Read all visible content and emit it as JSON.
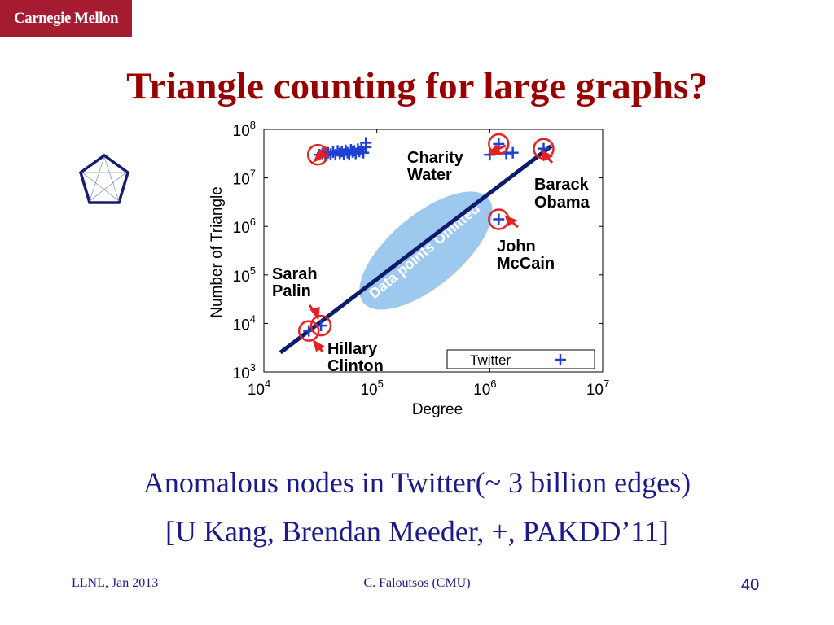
{
  "logo": "Carnegie Mellon",
  "title": "Triangle counting for large graphs?",
  "captions": [
    "Anomalous nodes in Twitter(~ 3 billion edges)",
    "[U Kang, Brendan Meeder, +, PAKDD’11]"
  ],
  "footer": {
    "left": "LLNL, Jan 2013",
    "center": "C. Faloutsos (CMU)",
    "page": "40"
  },
  "chart_data": {
    "type": "scatter",
    "xlabel": "Degree",
    "ylabel": "Number of Triangle",
    "xscale": "log",
    "yscale": "log",
    "xlim": [
      10000,
      10000000
    ],
    "ylim": [
      1000,
      100000000
    ],
    "x_ticks": [
      {
        "base": "10",
        "exp": "4",
        "value": 10000
      },
      {
        "base": "10",
        "exp": "5",
        "value": 100000
      },
      {
        "base": "10",
        "exp": "6",
        "value": 1000000
      },
      {
        "base": "10",
        "exp": "7",
        "value": 10000000
      }
    ],
    "y_ticks": [
      {
        "base": "10",
        "exp": "3",
        "value": 1000
      },
      {
        "base": "10",
        "exp": "4",
        "value": 10000
      },
      {
        "base": "10",
        "exp": "5",
        "value": 100000
      },
      {
        "base": "10",
        "exp": "6",
        "value": 1000000
      },
      {
        "base": "10",
        "exp": "7",
        "value": 10000000
      },
      {
        "base": "10",
        "exp": "8",
        "value": 100000000
      }
    ],
    "legend": {
      "label": "Twitter",
      "position": "bottom-right"
    },
    "series": [
      {
        "name": "Twitter",
        "color": "#1f3fd6",
        "points": [
          [
            31000,
            30000000
          ],
          [
            33000,
            32000000
          ],
          [
            35000,
            29000000
          ],
          [
            37000,
            33000000
          ],
          [
            39000,
            31000000
          ],
          [
            41000,
            34000000
          ],
          [
            43000,
            30000000
          ],
          [
            45000,
            36000000
          ],
          [
            47000,
            32000000
          ],
          [
            49000,
            35000000
          ],
          [
            51000,
            31000000
          ],
          [
            53000,
            37000000
          ],
          [
            55000,
            33000000
          ],
          [
            57000,
            30000000
          ],
          [
            59000,
            38000000
          ],
          [
            61000,
            34000000
          ],
          [
            63000,
            36000000
          ],
          [
            65000,
            32000000
          ],
          [
            68000,
            39000000
          ],
          [
            70000,
            35000000
          ],
          [
            73000,
            40000000
          ],
          [
            76000,
            33000000
          ],
          [
            80000,
            43000000
          ],
          [
            80000,
            53000000
          ],
          [
            1000000,
            30000000
          ],
          [
            1200000,
            50000000
          ],
          [
            1400000,
            32000000
          ],
          [
            1600000,
            33000000
          ],
          [
            3000000,
            40000000
          ],
          [
            1200000,
            1400000
          ],
          [
            32000,
            9000
          ],
          [
            25000,
            7000
          ]
        ]
      }
    ],
    "highlighted": [
      {
        "x": 30000,
        "y": 30000000,
        "label": ""
      },
      {
        "x": 1200000,
        "y": 50000000,
        "label": "Charity Water"
      },
      {
        "x": 3000000,
        "y": 40000000,
        "label": "Barack Obama"
      },
      {
        "x": 1200000,
        "y": 1400000,
        "label": "John McCain"
      },
      {
        "x": 32000,
        "y": 9000,
        "label": "Sarah Palin"
      },
      {
        "x": 25000,
        "y": 7000,
        "label": "Hillary Clinton"
      }
    ],
    "annotations": {
      "omitted": "Data points Omitted",
      "charity": [
        "Charity",
        "Water"
      ],
      "obama": [
        "Barack",
        "Obama"
      ],
      "mccain": [
        "John",
        "McCain"
      ],
      "palin": [
        "Sarah",
        "Palin"
      ],
      "clinton": [
        "Hillary",
        "Clinton"
      ]
    },
    "trend_line": {
      "from": [
        14000,
        2500
      ],
      "to": [
        3500000,
        45000000
      ],
      "color": "#0d1a6e"
    }
  }
}
